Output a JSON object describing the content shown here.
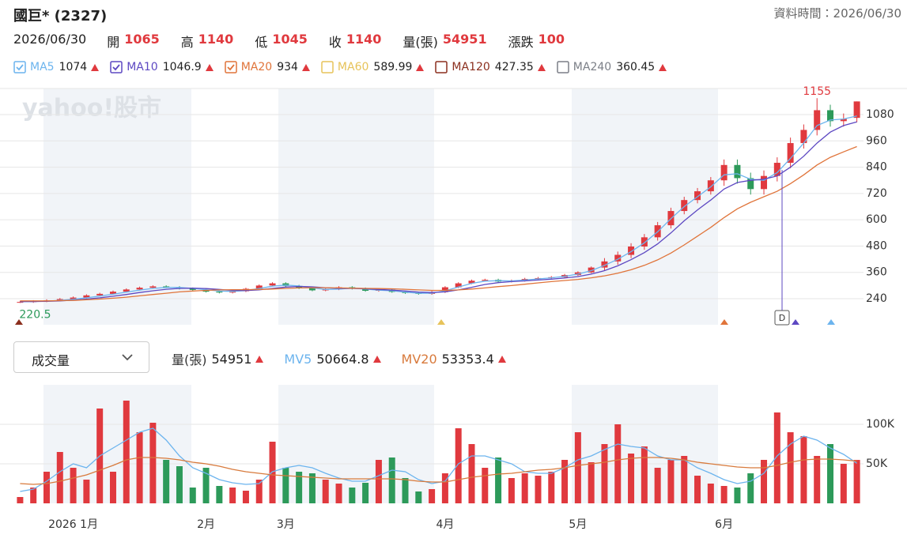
{
  "header": {
    "title": "國巨* (2327)",
    "data_time": "資料時間：2026/06/30",
    "date": "2026/06/30",
    "quote": [
      {
        "label": "開",
        "value": 1065
      },
      {
        "label": "高",
        "value": 1140
      },
      {
        "label": "低",
        "value": 1045
      },
      {
        "label": "收",
        "value": 1140
      },
      {
        "label": "量(張)",
        "value": 54951
      },
      {
        "label": "漲跌",
        "value": 100
      }
    ]
  },
  "ma_legend": [
    {
      "name": "MA5",
      "value": 1074,
      "color": "#6cb4ee",
      "checked": true
    },
    {
      "name": "MA10",
      "value": 1046.9,
      "color": "#5d48c2",
      "checked": true
    },
    {
      "name": "MA20",
      "value": 934,
      "color": "#e0743a",
      "checked": true
    },
    {
      "name": "MA60",
      "value": 589.99,
      "color": "#e7c35a",
      "checked": false
    },
    {
      "name": "MA120",
      "value": 427.35,
      "color": "#8b2f1e",
      "checked": false
    },
    {
      "name": "MA240",
      "value": 360.45,
      "color": "#7b7f87",
      "checked": false
    }
  ],
  "watermark": "yahoo!股市",
  "dividend_marker": "D",
  "volume_header": {
    "dropdown": "成交量",
    "items": [
      {
        "name": "量(張)",
        "value": 54951,
        "color": "#333333"
      },
      {
        "name": "MV5",
        "value": 50664.8,
        "color": "#6cb4ee"
      },
      {
        "name": "MV20",
        "value": 53353.4,
        "color": "#d87a3c"
      }
    ]
  },
  "chart_data": [
    {
      "type": "candlestick",
      "up_color": "#e0393e",
      "down_color": "#2d9a5a",
      "open": [
        222,
        225,
        228,
        232,
        238,
        245,
        255,
        262,
        272,
        282,
        290,
        296,
        292,
        286,
        280,
        272,
        268,
        274,
        285,
        300,
        310,
        298,
        288,
        278,
        283,
        292,
        286,
        276,
        281,
        271,
        266,
        262,
        270,
        292,
        310,
        322,
        326,
        318,
        322,
        330,
        334,
        338,
        348,
        360,
        382,
        410,
        440,
        478,
        520,
        575,
        640,
        690,
        730,
        780,
        850,
        790,
        740,
        800,
        860,
        950,
        1010,
        1100,
        1050,
        1065
      ],
      "high": [
        230,
        233,
        237,
        243,
        250,
        260,
        267,
        277,
        287,
        295,
        301,
        301,
        297,
        291,
        285,
        277,
        279,
        290,
        305,
        315,
        315,
        303,
        293,
        288,
        297,
        297,
        291,
        286,
        286,
        276,
        271,
        275,
        297,
        315,
        327,
        331,
        331,
        327,
        335,
        339,
        343,
        353,
        365,
        387,
        425,
        455,
        493,
        535,
        590,
        655,
        705,
        745,
        795,
        875,
        875,
        815,
        825,
        885,
        975,
        1035,
        1155,
        1125,
        1085,
        1140
      ],
      "low": [
        220.5,
        221,
        224,
        228,
        234,
        241,
        251,
        258,
        268,
        278,
        286,
        288,
        282,
        276,
        268,
        264,
        264,
        270,
        281,
        296,
        294,
        284,
        274,
        274,
        279,
        282,
        272,
        272,
        267,
        262,
        258,
        258,
        266,
        288,
        306,
        318,
        314,
        314,
        318,
        326,
        330,
        334,
        344,
        356,
        367,
        395,
        425,
        463,
        505,
        560,
        625,
        675,
        715,
        755,
        765,
        715,
        715,
        775,
        835,
        925,
        985,
        1025,
        1025,
        1045
      ],
      "close": [
        225,
        228,
        232,
        238,
        245,
        255,
        262,
        272,
        282,
        290,
        296,
        292,
        286,
        280,
        272,
        268,
        274,
        285,
        300,
        310,
        298,
        288,
        278,
        283,
        292,
        286,
        276,
        281,
        271,
        266,
        262,
        270,
        292,
        310,
        322,
        326,
        318,
        322,
        330,
        334,
        338,
        348,
        360,
        382,
        410,
        440,
        478,
        520,
        575,
        640,
        690,
        730,
        780,
        850,
        790,
        740,
        800,
        860,
        950,
        1010,
        1100,
        1050,
        1060,
        1140
      ],
      "series": [
        {
          "color": "#6cb4ee",
          "values": [
            226,
            227,
            229,
            232,
            237,
            244,
            252,
            260,
            270,
            279,
            287,
            291,
            291,
            287,
            281,
            275,
            273,
            277,
            286,
            297,
            302,
            298,
            289,
            282,
            284,
            288,
            284,
            279,
            276,
            270,
            265,
            265,
            276,
            293,
            310,
            320,
            322,
            321,
            325,
            330,
            335,
            342,
            352,
            368,
            392,
            420,
            455,
            495,
            545,
            605,
            660,
            705,
            750,
            805,
            810,
            785,
            780,
            815,
            880,
            950,
            1030,
            1055,
            1060,
            1074
          ]
        },
        {
          "color": "#5d48c2",
          "values": [
            227,
            227,
            228,
            230,
            233,
            238,
            244,
            251,
            259,
            268,
            276,
            283,
            287,
            288,
            286,
            282,
            278,
            277,
            280,
            287,
            293,
            296,
            294,
            290,
            287,
            287,
            285,
            282,
            279,
            275,
            270,
            268,
            271,
            280,
            292,
            305,
            313,
            318,
            321,
            325,
            329,
            334,
            341,
            352,
            368,
            390,
            418,
            450,
            490,
            540,
            595,
            645,
            690,
            740,
            770,
            780,
            785,
            800,
            840,
            890,
            950,
            1000,
            1030,
            1046.9
          ]
        },
        {
          "color": "#e0743a",
          "values": [
            230,
            230,
            230,
            231,
            232,
            235,
            238,
            242,
            247,
            253,
            259,
            265,
            271,
            275,
            278,
            280,
            281,
            281,
            282,
            284,
            287,
            289,
            290,
            290,
            289,
            288,
            287,
            286,
            285,
            283,
            280,
            278,
            278,
            280,
            284,
            289,
            295,
            300,
            306,
            312,
            318,
            323,
            328,
            335,
            344,
            356,
            372,
            392,
            417,
            448,
            485,
            525,
            565,
            610,
            650,
            680,
            705,
            730,
            765,
            805,
            850,
            885,
            910,
            934
          ]
        }
      ],
      "ylim": [
        121,
        1199
      ],
      "yticks": [
        240,
        360,
        480,
        600,
        720,
        840,
        960,
        1080
      ],
      "grid": true
    },
    {
      "type": "bar",
      "categories": [
        null,
        null,
        null,
        null,
        "2026 1月",
        null,
        null,
        null,
        null,
        null,
        null,
        null,
        null,
        null,
        "2月",
        null,
        null,
        null,
        null,
        null,
        "3月",
        null,
        null,
        null,
        null,
        null,
        null,
        null,
        null,
        null,
        null,
        null,
        "4月",
        null,
        null,
        null,
        null,
        null,
        null,
        null,
        null,
        null,
        "5月",
        null,
        null,
        null,
        null,
        null,
        null,
        null,
        null,
        null,
        null,
        "6月",
        null,
        null,
        null,
        null,
        null,
        null,
        null,
        null,
        null,
        null
      ],
      "values": [
        8000,
        20000,
        40000,
        65000,
        45000,
        30000,
        120000,
        40000,
        130000,
        90000,
        102000,
        55000,
        47000,
        20000,
        45000,
        22000,
        20000,
        16000,
        30000,
        78000,
        45000,
        40000,
        38000,
        30000,
        25000,
        20000,
        26000,
        55000,
        58000,
        32000,
        15000,
        18000,
        38000,
        95000,
        75000,
        45000,
        58000,
        32000,
        38000,
        35000,
        40000,
        55000,
        90000,
        52000,
        75000,
        100000,
        63000,
        72000,
        45000,
        55000,
        60000,
        35000,
        25000,
        22000,
        20000,
        38000,
        55000,
        115000,
        90000,
        85000,
        60000,
        75000,
        50000,
        54951
      ],
      "series": [
        {
          "color": "#6cb4ee",
          "values": [
            15000,
            18000,
            28000,
            40000,
            50000,
            45000,
            60000,
            70000,
            80000,
            90000,
            95000,
            80000,
            60000,
            45000,
            38000,
            30000,
            26000,
            24000,
            25000,
            40000,
            45000,
            48000,
            45000,
            38000,
            32000,
            28000,
            28000,
            35000,
            42000,
            40000,
            30000,
            25000,
            28000,
            50000,
            60000,
            60000,
            55000,
            50000,
            40000,
            38000,
            38000,
            45000,
            55000,
            60000,
            68000,
            75000,
            72000,
            70000,
            60000,
            55000,
            55000,
            45000,
            38000,
            30000,
            25000,
            28000,
            38000,
            60000,
            75000,
            85000,
            80000,
            70000,
            62000,
            50664.8
          ]
        },
        {
          "color": "#d87a3c",
          "values": [
            25000,
            24000,
            25000,
            28000,
            32000,
            36000,
            42000,
            48000,
            55000,
            58000,
            58000,
            57000,
            55000,
            52000,
            50000,
            47000,
            43000,
            40000,
            38000,
            36000,
            35000,
            34000,
            33000,
            32000,
            31000,
            31000,
            31000,
            31000,
            31000,
            30000,
            28000,
            27000,
            27000,
            30000,
            33000,
            35000,
            37000,
            38000,
            40000,
            42000,
            43000,
            45000,
            48000,
            50000,
            52000,
            55000,
            57000,
            58000,
            58000,
            57000,
            55000,
            52000,
            50000,
            48000,
            46000,
            45000,
            45000,
            48000,
            52000,
            55000,
            56000,
            56000,
            55000,
            53353.4
          ]
        }
      ],
      "ylim": [
        0,
        150000
      ],
      "yticks": [
        {
          "value": 50000,
          "label": "50K"
        },
        {
          "value": 100000,
          "label": "100K"
        }
      ],
      "grid": true
    }
  ]
}
